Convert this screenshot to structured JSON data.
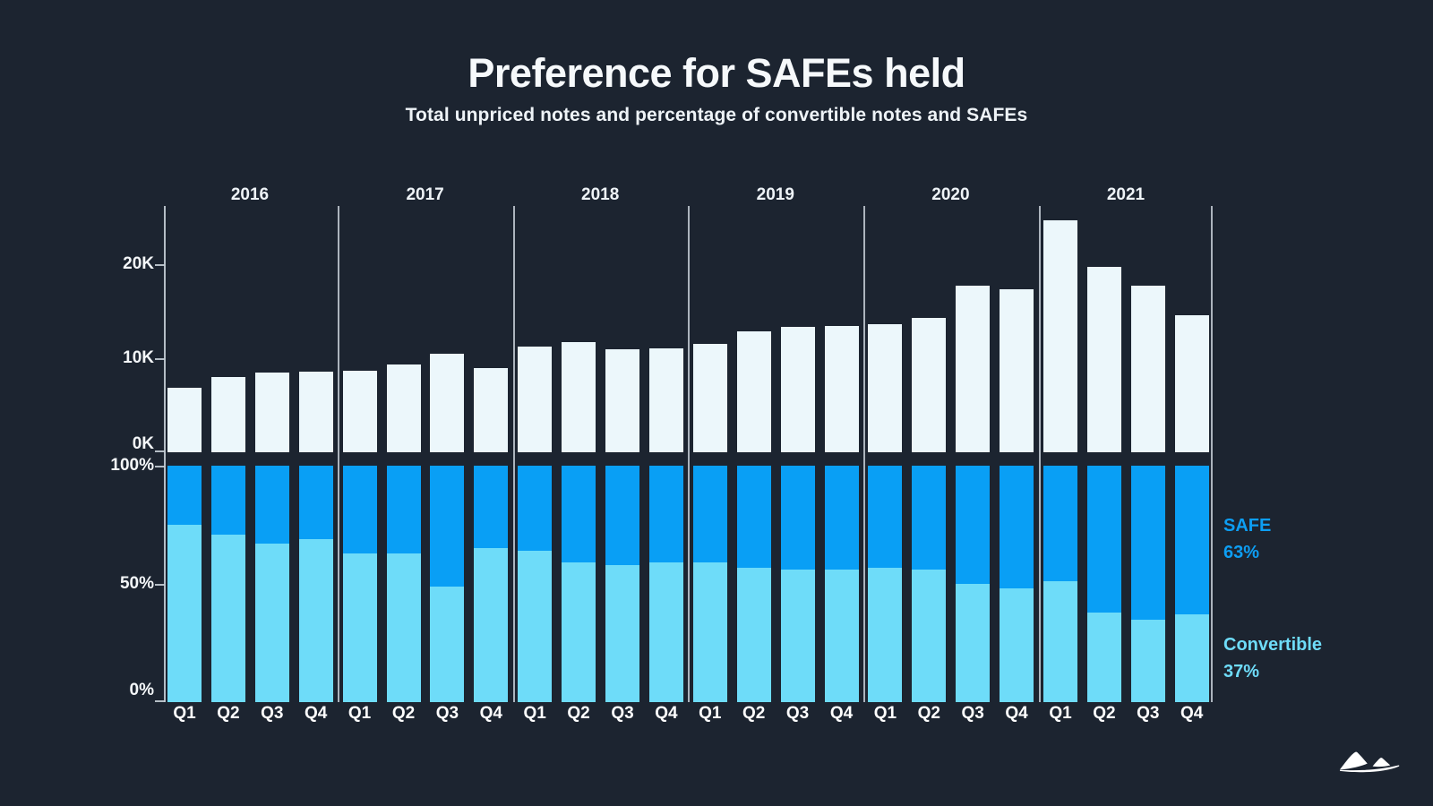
{
  "title": "Preference for SAFEs held",
  "subtitle": "Total unpriced notes and percentage of convertible notes and SAFEs",
  "years": [
    "2016",
    "2017",
    "2018",
    "2019",
    "2020",
    "2021"
  ],
  "legend": {
    "safe_label": "SAFE",
    "safe_value": "63%",
    "convertible_label": "Convertible",
    "convertible_value": "37%"
  },
  "colors": {
    "background": "#1c2430",
    "total_bar": "#ecf7fb",
    "safe": "#099ff5",
    "convertible": "#6edcf9",
    "axis": "#c5ced6",
    "text": "#f4f7f9",
    "safe_label_text": "#0d9ef3",
    "convertible_label_text": "#6edcf9"
  },
  "icons": {
    "logo": "dunes-logo-icon"
  },
  "chart_data": [
    {
      "type": "bar",
      "name": "total-unpriced-notes",
      "title": "Total unpriced notes",
      "categories": [
        "Q1 2016",
        "Q2 2016",
        "Q3 2016",
        "Q4 2016",
        "Q1 2017",
        "Q2 2017",
        "Q3 2017",
        "Q4 2017",
        "Q1 2018",
        "Q2 2018",
        "Q3 2018",
        "Q4 2018",
        "Q1 2019",
        "Q2 2019",
        "Q3 2019",
        "Q4 2019",
        "Q1 2020",
        "Q2 2020",
        "Q3 2020",
        "Q4 2020",
        "Q1 2021",
        "Q2 2021",
        "Q3 2021",
        "Q4 2021"
      ],
      "values_thousands": [
        6.9,
        8.0,
        8.5,
        8.6,
        8.7,
        9.4,
        10.5,
        9.0,
        11.3,
        11.8,
        11.0,
        11.1,
        11.6,
        12.9,
        13.4,
        13.5,
        13.7,
        14.3,
        17.8,
        17.4,
        24.8,
        19.8,
        17.8,
        14.6
      ],
      "ytick_labels": [
        "0K",
        "10K",
        "20K"
      ],
      "ytick_values_thousands": [
        0,
        10,
        20
      ],
      "ylim_thousands": [
        0,
        26.2
      ],
      "grid": false,
      "bar_color": "#ecf7fb"
    },
    {
      "type": "bar",
      "name": "safe-vs-convertible-percentage",
      "title": "Percentage of convertible notes and SAFEs",
      "stacked": true,
      "categories": [
        "Q1 2016",
        "Q2 2016",
        "Q3 2016",
        "Q4 2016",
        "Q1 2017",
        "Q2 2017",
        "Q3 2017",
        "Q4 2017",
        "Q1 2018",
        "Q2 2018",
        "Q3 2018",
        "Q4 2018",
        "Q1 2019",
        "Q2 2019",
        "Q3 2019",
        "Q4 2019",
        "Q1 2020",
        "Q2 2020",
        "Q3 2020",
        "Q4 2020",
        "Q1 2021",
        "Q2 2021",
        "Q3 2021",
        "Q4 2021"
      ],
      "series": [
        {
          "name": "Convertible",
          "color": "#6edcf9",
          "values_percent": [
            75,
            71,
            67,
            69,
            63,
            63,
            49,
            65,
            64,
            59,
            58,
            59,
            59,
            57,
            56,
            56,
            57,
            56,
            50,
            48,
            51,
            38,
            35,
            37
          ]
        },
        {
          "name": "SAFE",
          "color": "#099ff5",
          "values_percent": [
            25,
            29,
            33,
            31,
            37,
            37,
            51,
            35,
            36,
            41,
            42,
            41,
            41,
            43,
            44,
            44,
            43,
            44,
            50,
            52,
            49,
            62,
            65,
            63
          ]
        }
      ],
      "ytick_labels": [
        "0%",
        "50%",
        "100%"
      ],
      "ytick_values_percent": [
        0,
        50,
        100
      ],
      "ylim_percent": [
        0,
        100
      ],
      "grid": false,
      "legend_position": "right"
    }
  ]
}
